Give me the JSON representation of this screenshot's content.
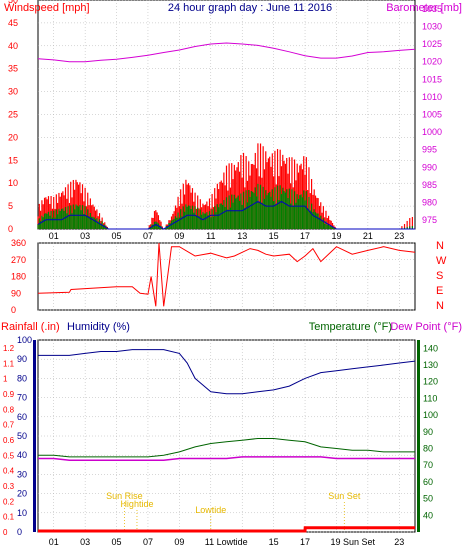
{
  "title": "24 hour graph day : June 11 2016",
  "colors": {
    "wind_red": "#ff0000",
    "gust_green": "#008000",
    "avg_blue": "#0000c0",
    "barometer": "#d400d4",
    "humidity": "#00008b",
    "temperature": "#006400",
    "dewpoint": "#cc00cc",
    "rain": "#ff0000",
    "sun": "#e6b800",
    "grid": "#b0b0b0"
  },
  "x_ticks": [
    "01",
    "03",
    "05",
    "07",
    "09",
    "11",
    "13",
    "15",
    "17",
    "19",
    "21",
    "23"
  ],
  "chart_data": [
    {
      "type": "line",
      "name": "wind-barometer",
      "left_label": "Windspeed [mph]",
      "right_label": "Barometer [mb]",
      "left_ticks": [
        0,
        5,
        10,
        15,
        20,
        25,
        30,
        35,
        40,
        45,
        50
      ],
      "right_ticks": [
        975,
        980,
        985,
        990,
        995,
        1000,
        1005,
        1010,
        1015,
        1020,
        1025,
        1030,
        1035
      ],
      "ylim_left": [
        0,
        50
      ],
      "ylim_right": [
        972.5,
        1037.5
      ],
      "x_range": [
        0,
        24
      ],
      "barometer": {
        "x": [
          0,
          1,
          2,
          3,
          4,
          5,
          6,
          7,
          8,
          9,
          10,
          11,
          12,
          13,
          14,
          15,
          16,
          17,
          18,
          19,
          20,
          21,
          22,
          23,
          24
        ],
        "y": [
          1020.8,
          1020.5,
          1020.0,
          1020.0,
          1020.4,
          1020.7,
          1021.2,
          1021.8,
          1022.6,
          1023.3,
          1024.3,
          1025.0,
          1025.3,
          1025.0,
          1024.6,
          1023.8,
          1022.8,
          1021.7,
          1021.0,
          1021.0,
          1021.6,
          1022.6,
          1022.8,
          1023.2,
          1023.5
        ]
      },
      "wind_max": {
        "x": [
          0,
          0.5,
          1,
          1.5,
          2,
          2.5,
          3,
          3.5,
          4,
          4.5,
          5,
          6,
          7,
          7.5,
          8,
          8.5,
          9,
          9.5,
          10,
          10.5,
          11,
          11.5,
          12,
          12.5,
          13,
          13.5,
          14,
          14.5,
          15,
          15.5,
          16,
          16.5,
          17,
          17.5,
          18,
          18.5,
          19,
          19.5,
          20,
          21,
          22,
          23,
          24
        ],
        "y": [
          5,
          8,
          7,
          9,
          10,
          12,
          9,
          6,
          3,
          0,
          0,
          0,
          0,
          5,
          0,
          3,
          8,
          12,
          8,
          6,
          7,
          11,
          14,
          15,
          17,
          15,
          19,
          18,
          17,
          18,
          16,
          15,
          17,
          10,
          6,
          3,
          0,
          0,
          0,
          0,
          0,
          0,
          4
        ]
      },
      "wind_gust": {
        "x": [
          0,
          0.5,
          1,
          1.5,
          2,
          2.5,
          3,
          3.5,
          4,
          4.5,
          5,
          6,
          7,
          7.5,
          8,
          8.5,
          9,
          9.5,
          10,
          10.5,
          11,
          11.5,
          12,
          12.5,
          13,
          13.5,
          14,
          14.5,
          15,
          15.5,
          16,
          16.5,
          17,
          17.5,
          18,
          18.5,
          19,
          19.5,
          20,
          21,
          22,
          23,
          24
        ],
        "y": [
          2,
          4,
          4,
          5,
          5,
          6,
          5,
          3,
          2,
          0,
          0,
          0,
          0,
          2,
          0,
          2,
          4,
          6,
          5,
          4,
          4,
          6,
          7,
          8,
          8,
          9,
          10,
          9,
          9,
          10,
          9,
          8,
          9,
          5,
          3,
          1,
          0,
          0,
          0,
          0,
          0,
          0,
          1
        ]
      },
      "wind_avg": {
        "x": [
          0,
          0.5,
          1,
          1.5,
          2,
          2.5,
          3,
          3.5,
          4,
          4.5,
          5,
          6,
          7,
          7.5,
          8,
          8.5,
          9,
          9.5,
          10,
          10.5,
          11,
          11.5,
          12,
          12.5,
          13,
          13.5,
          14,
          14.5,
          15,
          15.5,
          16,
          16.5,
          17,
          17.5,
          18,
          18.5,
          19,
          19.5,
          20,
          21,
          22,
          23,
          24
        ],
        "y": [
          1,
          2,
          2,
          2,
          3,
          3,
          3,
          2,
          1,
          0,
          0,
          0,
          0,
          1,
          0,
          1,
          2,
          3,
          3,
          2,
          3,
          3,
          4,
          4,
          4,
          5,
          6,
          5,
          5,
          6,
          5,
          5,
          5,
          3,
          2,
          1,
          0,
          0,
          0,
          0,
          0,
          0,
          0
        ]
      }
    },
    {
      "type": "line",
      "name": "wind-direction",
      "left_ticks": [
        0,
        90,
        180,
        270,
        360
      ],
      "right_labels": [
        "N",
        "W",
        "S",
        "E",
        "N"
      ],
      "ylim": [
        0,
        360
      ],
      "x_range": [
        0,
        24
      ],
      "direction": {
        "x": [
          0,
          2,
          2.1,
          5,
          6,
          6.5,
          7.0,
          7.2,
          7.5,
          7.7,
          8.0,
          8.5,
          9,
          10,
          11,
          12,
          12.5,
          13,
          13.5,
          14,
          14.5,
          15,
          16,
          16.5,
          17,
          17.5,
          18,
          19,
          20,
          21,
          22,
          23,
          24
        ],
        "y": [
          90,
          95,
          110,
          125,
          125,
          90,
          85,
          180,
          20,
          360,
          20,
          340,
          340,
          290,
          305,
          280,
          290,
          310,
          330,
          320,
          300,
          290,
          300,
          260,
          290,
          330,
          260,
          340,
          300,
          320,
          340,
          320,
          310
        ]
      }
    },
    {
      "type": "line",
      "name": "humidity-temperature",
      "left_labels": [
        "Rainfall (.in)",
        "Humidity (%)"
      ],
      "right_labels": [
        "Temperature (°F)",
        "Dew Point (°F)"
      ],
      "rain_ticks": [
        "0",
        "0.1",
        "0.2",
        "0.3",
        "0.4",
        "0.5",
        "0.6",
        "0.7",
        "0.8",
        "0.9",
        "1",
        "1.1",
        "1.2"
      ],
      "humidity_ticks": [
        0,
        10,
        20,
        30,
        40,
        50,
        60,
        70,
        80,
        90,
        100
      ],
      "temp_ticks": [
        40,
        50,
        60,
        70,
        80,
        90,
        100,
        110,
        120,
        130,
        140
      ],
      "ylim_humidity": [
        0,
        100
      ],
      "ylim_temp": [
        30,
        145
      ],
      "x_range": [
        0,
        24
      ],
      "humidity": {
        "x": [
          0,
          1,
          2,
          3,
          4,
          5,
          6,
          7,
          8,
          9,
          9.5,
          10,
          11,
          12,
          13,
          14,
          15,
          16,
          17,
          18,
          19,
          20,
          21,
          22,
          23,
          24
        ],
        "y": [
          92,
          92,
          92,
          93,
          94,
          94,
          95,
          95,
          95,
          93,
          88,
          80,
          73,
          72,
          72,
          73,
          74,
          76,
          80,
          83,
          84,
          85,
          86,
          87,
          88,
          89
        ]
      },
      "temperature": {
        "x": [
          0,
          1,
          2,
          3,
          4,
          5,
          6,
          7,
          8,
          9,
          10,
          11,
          12,
          13,
          14,
          15,
          16,
          17,
          18,
          19,
          20,
          21,
          22,
          23,
          24
        ],
        "y": [
          76,
          76,
          75,
          75,
          75,
          75,
          75,
          75,
          76,
          78,
          81,
          83,
          84,
          85,
          86,
          86,
          85,
          84,
          81,
          80,
          79,
          79,
          78,
          78,
          78
        ]
      },
      "dewpoint": {
        "x": [
          0,
          1,
          2,
          3,
          4,
          5,
          6,
          7,
          8,
          9,
          10,
          11,
          12,
          13,
          14,
          15,
          16,
          17,
          18,
          19,
          20,
          21,
          22,
          23,
          24
        ],
        "y": [
          74,
          74,
          73,
          73,
          73,
          73,
          73,
          73,
          73,
          74,
          74,
          74,
          74,
          75,
          75,
          75,
          75,
          75,
          75,
          74,
          74,
          74,
          74,
          74,
          74
        ]
      },
      "rain": {
        "x": [
          0,
          17,
          17.01,
          24
        ],
        "y": [
          0,
          0,
          0.02,
          0.02
        ]
      },
      "annotations": {
        "sun_rise": {
          "label": "Sun Rise",
          "x": 5.5
        },
        "high_tide": {
          "label": "Hightide",
          "x": 6.3
        },
        "low_tide": {
          "label": "Lowtide",
          "x": 11.0
        },
        "sun_set": {
          "label": "Sun Set",
          "x": 19.5
        }
      },
      "bottom_tick_labels": [
        "01",
        "03",
        "05",
        "07",
        "09",
        "11 Lowtide",
        "15",
        "17",
        "19 Sun Set",
        "23"
      ]
    }
  ]
}
